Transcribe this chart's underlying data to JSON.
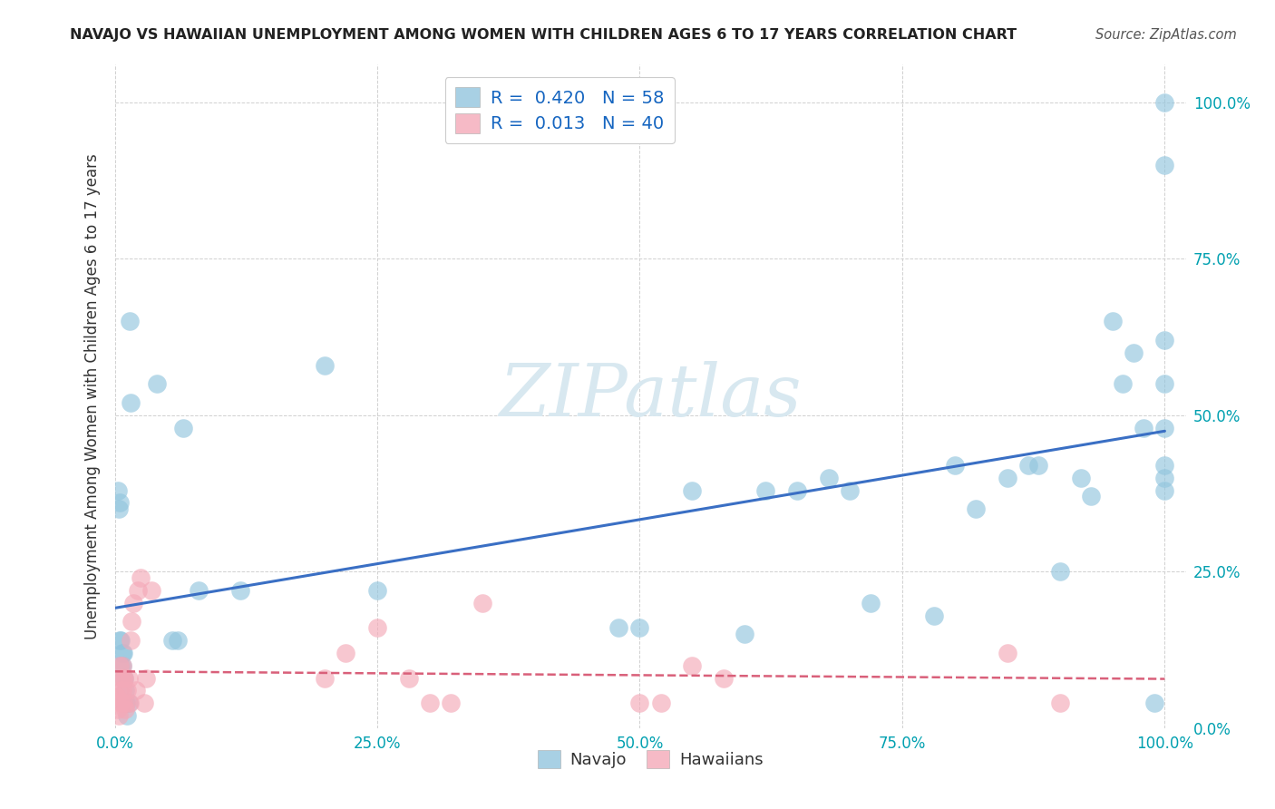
{
  "title": "NAVAJO VS HAWAIIAN UNEMPLOYMENT AMONG WOMEN WITH CHILDREN AGES 6 TO 17 YEARS CORRELATION CHART",
  "source": "Source: ZipAtlas.com",
  "ylabel": "Unemployment Among Women with Children Ages 6 to 17 years",
  "navajo_R": "0.420",
  "navajo_N": "58",
  "hawaiian_R": "0.013",
  "hawaiian_N": "40",
  "navajo_color": "#92c5de",
  "hawaiian_color": "#f4a9b8",
  "navajo_line_color": "#3a6fc4",
  "hawaiian_line_color": "#d9607a",
  "background_color": "#ffffff",
  "watermark_color": "#d8e8f0",
  "navajo_x": [
    0.003,
    0.004,
    0.005,
    0.005,
    0.006,
    0.006,
    0.007,
    0.007,
    0.008,
    0.008,
    0.009,
    0.009,
    0.01,
    0.01,
    0.011,
    0.012,
    0.013,
    0.014,
    0.015,
    0.04,
    0.055,
    0.06,
    0.065,
    0.08,
    0.12,
    0.2,
    0.25,
    0.48,
    0.5,
    0.55,
    0.6,
    0.62,
    0.65,
    0.68,
    0.7,
    0.72,
    0.78,
    0.8,
    0.82,
    0.85,
    0.87,
    0.88,
    0.9,
    0.92,
    0.93,
    0.95,
    0.96,
    0.97,
    0.98,
    0.99,
    1.0,
    1.0,
    1.0,
    1.0,
    1.0,
    1.0,
    1.0,
    1.0
  ],
  "navajo_y": [
    0.38,
    0.35,
    0.36,
    0.14,
    0.14,
    0.1,
    0.12,
    0.1,
    0.12,
    0.08,
    0.08,
    0.04,
    0.06,
    0.04,
    0.04,
    0.02,
    0.04,
    0.65,
    0.52,
    0.55,
    0.14,
    0.14,
    0.48,
    0.22,
    0.22,
    0.58,
    0.22,
    0.16,
    0.16,
    0.38,
    0.15,
    0.38,
    0.38,
    0.4,
    0.38,
    0.2,
    0.18,
    0.42,
    0.35,
    0.4,
    0.42,
    0.42,
    0.25,
    0.4,
    0.37,
    0.65,
    0.55,
    0.6,
    0.48,
    0.04,
    0.38,
    0.4,
    0.42,
    0.62,
    0.9,
    0.48,
    0.55,
    1.0
  ],
  "hawaiian_x": [
    0.001,
    0.002,
    0.003,
    0.004,
    0.005,
    0.005,
    0.006,
    0.006,
    0.007,
    0.007,
    0.008,
    0.008,
    0.009,
    0.01,
    0.011,
    0.012,
    0.013,
    0.014,
    0.015,
    0.016,
    0.018,
    0.02,
    0.022,
    0.025,
    0.028,
    0.03,
    0.035,
    0.2,
    0.22,
    0.25,
    0.28,
    0.3,
    0.32,
    0.35,
    0.5,
    0.52,
    0.55,
    0.58,
    0.85,
    0.9
  ],
  "hawaiian_y": [
    0.05,
    0.05,
    0.03,
    0.02,
    0.1,
    0.06,
    0.04,
    0.08,
    0.1,
    0.06,
    0.04,
    0.08,
    0.08,
    0.03,
    0.04,
    0.06,
    0.08,
    0.04,
    0.14,
    0.17,
    0.2,
    0.06,
    0.22,
    0.24,
    0.04,
    0.08,
    0.22,
    0.08,
    0.12,
    0.16,
    0.08,
    0.04,
    0.04,
    0.2,
    0.04,
    0.04,
    0.1,
    0.08,
    0.12,
    0.04
  ],
  "xlim": [
    0.0,
    1.02
  ],
  "ylim": [
    0.0,
    1.06
  ],
  "xticks": [
    0.0,
    0.25,
    0.5,
    0.75,
    1.0
  ],
  "xtick_labels": [
    "0.0%",
    "25.0%",
    "50.0%",
    "75.0%",
    "100.0%"
  ],
  "ytick_values": [
    0.0,
    0.25,
    0.5,
    0.75,
    1.0
  ],
  "ytick_labels_right": [
    "0.0%",
    "25.0%",
    "50.0%",
    "75.0%",
    "100.0%"
  ],
  "legend_navajo_label": "R =  0.420   N = 58",
  "legend_hawaiian_label": "R =  0.013   N = 40",
  "bottom_legend_navajo": "Navajo",
  "bottom_legend_hawaiian": "Hawaiians",
  "text_color_blue": "#1565c0",
  "tick_color": "#00a0b0",
  "ylabel_color": "#333333",
  "title_color": "#222222",
  "source_color": "#555555",
  "grid_color": "#d0d0d0",
  "watermark_text": "ZIPatlas"
}
